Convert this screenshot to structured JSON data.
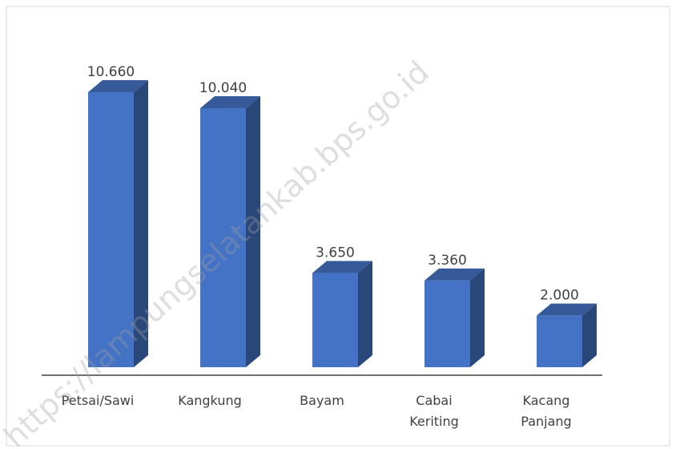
{
  "chart_data": {
    "type": "bar3d",
    "categories": [
      "Petsai/Sawi",
      "Kangkung",
      "Bayam",
      "Cabai Keriting",
      "Kacang Panjang"
    ],
    "values": [
      10660,
      10040,
      3650,
      3360,
      2000
    ],
    "value_labels": [
      "10.660",
      "10.040",
      "3.650",
      "3.360",
      "2.000"
    ],
    "color": "#4472c4",
    "watermark": "https://lampungselatankab.bps.go.id"
  }
}
